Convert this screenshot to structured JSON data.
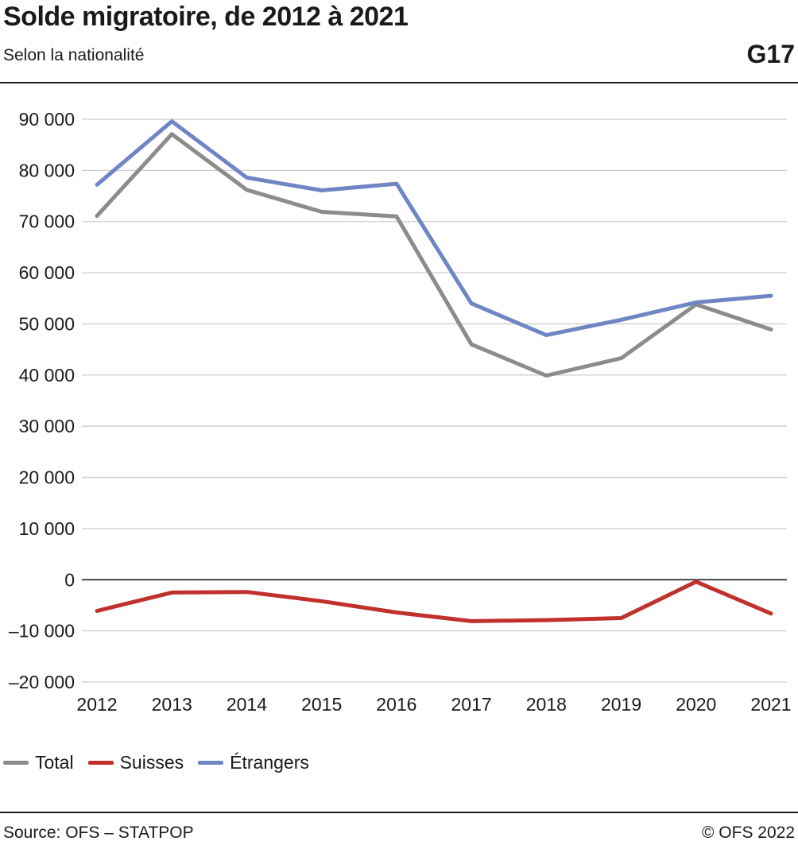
{
  "header": {
    "title": "Solde migratoire, de 2012 à 2021",
    "subtitle": "Selon la nationalité",
    "code": "G17"
  },
  "footer": {
    "source": "Source: OFS – STATPOP",
    "copyright": "© OFS 2022"
  },
  "chart_data": {
    "type": "line",
    "x": [
      "2012",
      "2013",
      "2014",
      "2015",
      "2016",
      "2017",
      "2018",
      "2019",
      "2020",
      "2021"
    ],
    "ylim": [
      -20000,
      90000
    ],
    "yticks": [
      90000,
      80000,
      70000,
      60000,
      50000,
      40000,
      30000,
      20000,
      10000,
      0,
      -10000,
      -20000
    ],
    "ytick_labels": [
      "90 000",
      "80 000",
      "70 000",
      "60 000",
      "50 000",
      "40 000",
      "30 000",
      "20 000",
      "10 000",
      "0",
      "–10 000",
      "–20 000"
    ],
    "grid": true,
    "legend_position": "bottom-left",
    "series": [
      {
        "name": "Total",
        "color": "#8c8c8c",
        "values": [
          71100,
          87100,
          76200,
          71900,
          71000,
          46000,
          39900,
          43300,
          53800,
          48900
        ]
      },
      {
        "name": "Suisses",
        "color": "#c0312b",
        "values": [
          -6100,
          -2500,
          -2400,
          -4200,
          -6400,
          -8100,
          -7900,
          -7500,
          -400,
          -6600
        ]
      },
      {
        "name": "Étrangers",
        "color": "#6f86c4",
        "values": [
          77200,
          89600,
          78600,
          76100,
          77400,
          54000,
          47800,
          50800,
          54200,
          55500
        ]
      }
    ]
  }
}
